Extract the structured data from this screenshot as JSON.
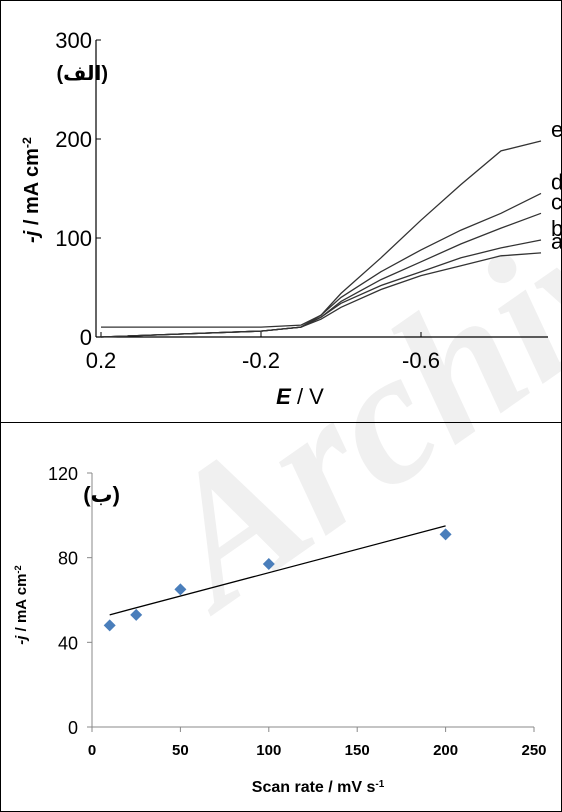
{
  "watermark": "Archive",
  "chart_data": [
    {
      "type": "line",
      "panel_label": "(الف)",
      "ylabel_prefix": "-j",
      "ylabel_rest": " / mA cm",
      "ylabel_sup": "-2",
      "xlabel_var": "E",
      "xlabel_rest": " / V",
      "xticks": [
        "0.2",
        "-0.2",
        "-0.6"
      ],
      "yticks": [
        "0",
        "100",
        "200",
        "300"
      ],
      "ylim": [
        0,
        300
      ],
      "xlim": [
        0.2,
        -0.9
      ],
      "series": [
        {
          "name": "a",
          "points": [
            [
              0.2,
              0
            ],
            [
              0.0,
              3
            ],
            [
              -0.2,
              6
            ],
            [
              -0.3,
              10
            ],
            [
              -0.35,
              18
            ],
            [
              -0.4,
              30
            ],
            [
              -0.5,
              48
            ],
            [
              -0.6,
              62
            ],
            [
              -0.7,
              72
            ],
            [
              -0.8,
              82
            ],
            [
              -0.9,
              85
            ]
          ]
        },
        {
          "name": "b",
          "points": [
            [
              0.2,
              0
            ],
            [
              0.0,
              3
            ],
            [
              -0.2,
              6
            ],
            [
              -0.3,
              10
            ],
            [
              -0.35,
              20
            ],
            [
              -0.4,
              34
            ],
            [
              -0.5,
              52
            ],
            [
              -0.6,
              66
            ],
            [
              -0.7,
              80
            ],
            [
              -0.8,
              90
            ],
            [
              -0.9,
              98
            ]
          ]
        },
        {
          "name": "c",
          "points": [
            [
              0.2,
              0
            ],
            [
              0.0,
              3
            ],
            [
              -0.2,
              6
            ],
            [
              -0.3,
              10
            ],
            [
              -0.35,
              20
            ],
            [
              -0.4,
              36
            ],
            [
              -0.5,
              58
            ],
            [
              -0.6,
              76
            ],
            [
              -0.7,
              94
            ],
            [
              -0.8,
              110
            ],
            [
              -0.9,
              125
            ]
          ]
        },
        {
          "name": "d",
          "points": [
            [
              0.2,
              0
            ],
            [
              0.0,
              3
            ],
            [
              -0.2,
              6
            ],
            [
              -0.3,
              10
            ],
            [
              -0.35,
              22
            ],
            [
              -0.4,
              40
            ],
            [
              -0.5,
              66
            ],
            [
              -0.6,
              88
            ],
            [
              -0.7,
              108
            ],
            [
              -0.8,
              125
            ],
            [
              -0.9,
              145
            ]
          ]
        },
        {
          "name": "e",
          "points": [
            [
              0.2,
              10
            ],
            [
              0.0,
              10
            ],
            [
              -0.2,
              10
            ],
            [
              -0.3,
              12
            ],
            [
              -0.35,
              22
            ],
            [
              -0.4,
              44
            ],
            [
              -0.5,
              80
            ],
            [
              -0.6,
              118
            ],
            [
              -0.7,
              154
            ],
            [
              -0.8,
              188
            ],
            [
              -0.9,
              198
            ]
          ]
        }
      ]
    },
    {
      "type": "scatter",
      "panel_label": "(ب)",
      "ylabel_prefix": "-j",
      "ylabel_rest": " / mA cm",
      "ylabel_sup": "-2",
      "xlabel": "Scan rate / mV s",
      "xlabel_sup": "-1",
      "xticks": [
        "0",
        "50",
        "100",
        "150",
        "200",
        "250"
      ],
      "yticks": [
        "0",
        "40",
        "80",
        "120"
      ],
      "xlim": [
        0,
        250
      ],
      "ylim": [
        0,
        120
      ],
      "points": [
        [
          10,
          48
        ],
        [
          25,
          53
        ],
        [
          50,
          65
        ],
        [
          100,
          77
        ],
        [
          200,
          91
        ]
      ],
      "trendline": [
        [
          10,
          53
        ],
        [
          200,
          95
        ]
      ],
      "marker_color": "#4a7ebb",
      "line_color": "#000000"
    }
  ]
}
